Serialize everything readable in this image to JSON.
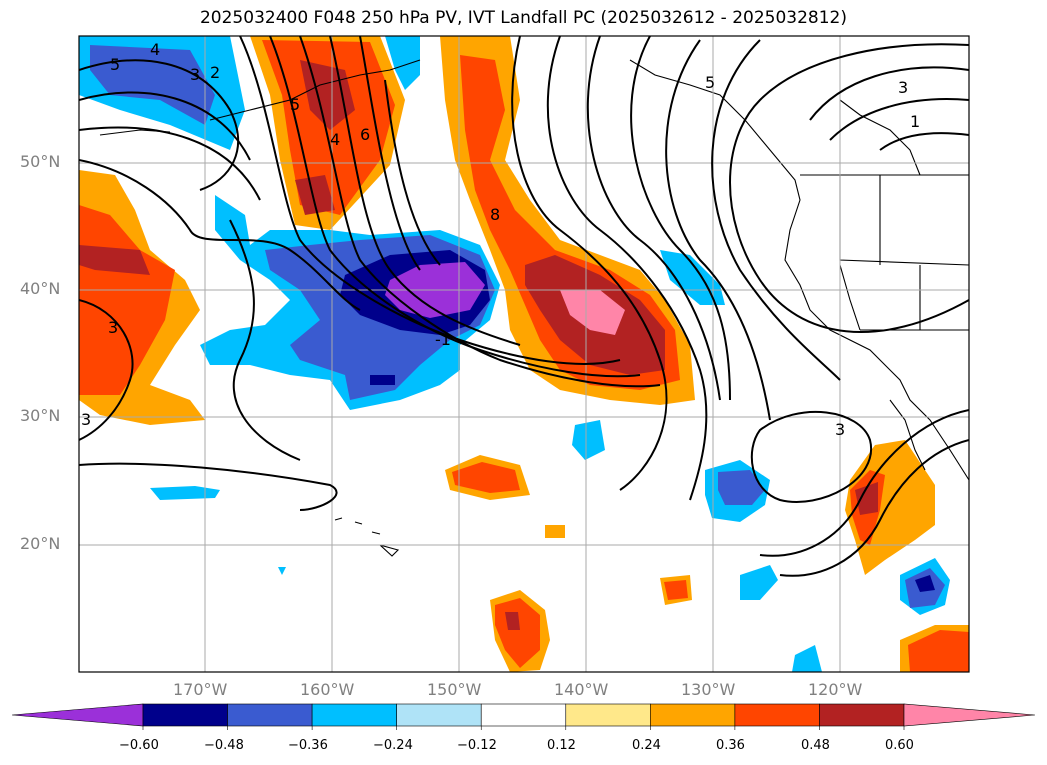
{
  "title": "2025032400 F048 250 hPa PV, IVT Landfall PC (2025032612 - 2025032812)",
  "lat_labels": [
    "50°N",
    "40°N",
    "30°N",
    "20°N"
  ],
  "lon_labels": [
    "170°W",
    "160°W",
    "150°W",
    "140°W",
    "130°W",
    "120°W"
  ],
  "contour_labels": [
    "5",
    "4",
    "3",
    "2",
    "6",
    "5",
    "4",
    "8",
    "-1",
    "3",
    "5",
    "3",
    "1",
    "3",
    "3"
  ],
  "colorbar": {
    "ticks": [
      "−0.60",
      "−0.48",
      "−0.36",
      "−0.24",
      "−0.12",
      "0.12",
      "0.24",
      "0.36",
      "0.48",
      "0.60"
    ],
    "colors": [
      "#9b30d9",
      "#00008b",
      "#3a5bd0",
      "#00bfff",
      "#afe3f7",
      "#ffffff",
      "#ffe88a",
      "#ffa500",
      "#ff4500",
      "#b22222",
      "#ff85a8"
    ]
  }
}
